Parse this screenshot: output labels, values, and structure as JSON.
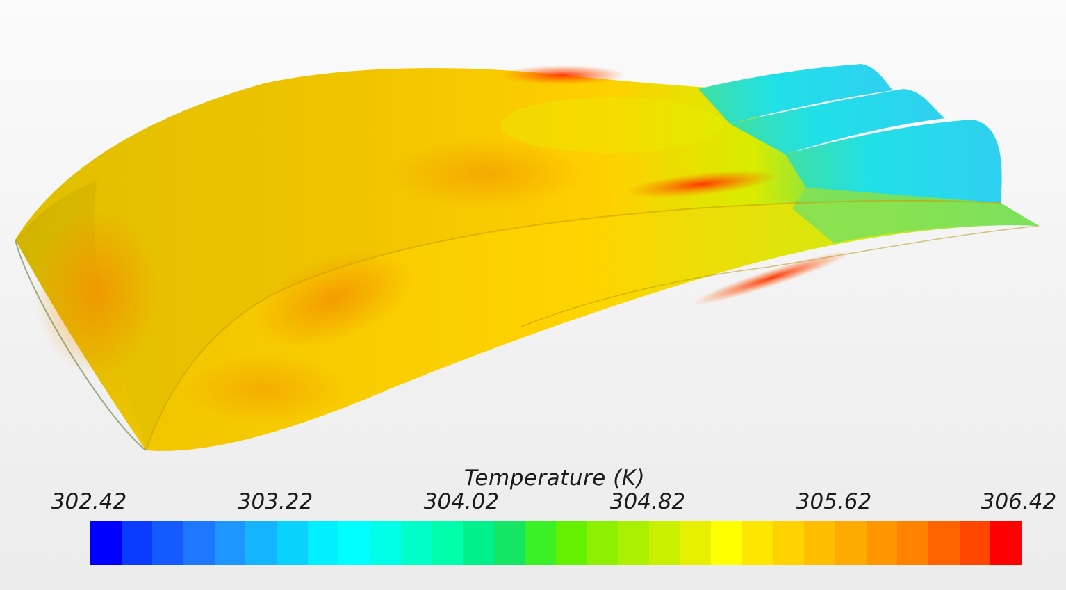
{
  "legend": {
    "title": "Temperature (K)",
    "ticks": [
      "302.42",
      "303.22",
      "304.02",
      "304.82",
      "305.62",
      "306.42"
    ],
    "colors": [
      "#0000ff",
      "#0a3cff",
      "#145aff",
      "#1e78ff",
      "#1e96ff",
      "#14b4ff",
      "#0ad2ff",
      "#00f0ff",
      "#00ffff",
      "#00ffe6",
      "#00ffc8",
      "#00ffaa",
      "#00f08c",
      "#14e664",
      "#3cf028",
      "#64f000",
      "#8cf000",
      "#aaf000",
      "#c8f000",
      "#e6f000",
      "#ffff00",
      "#ffe600",
      "#ffd200",
      "#ffbe00",
      "#ffaa00",
      "#ff9600",
      "#ff8200",
      "#ff6400",
      "#ff4600",
      "#ff0000"
    ]
  }
}
